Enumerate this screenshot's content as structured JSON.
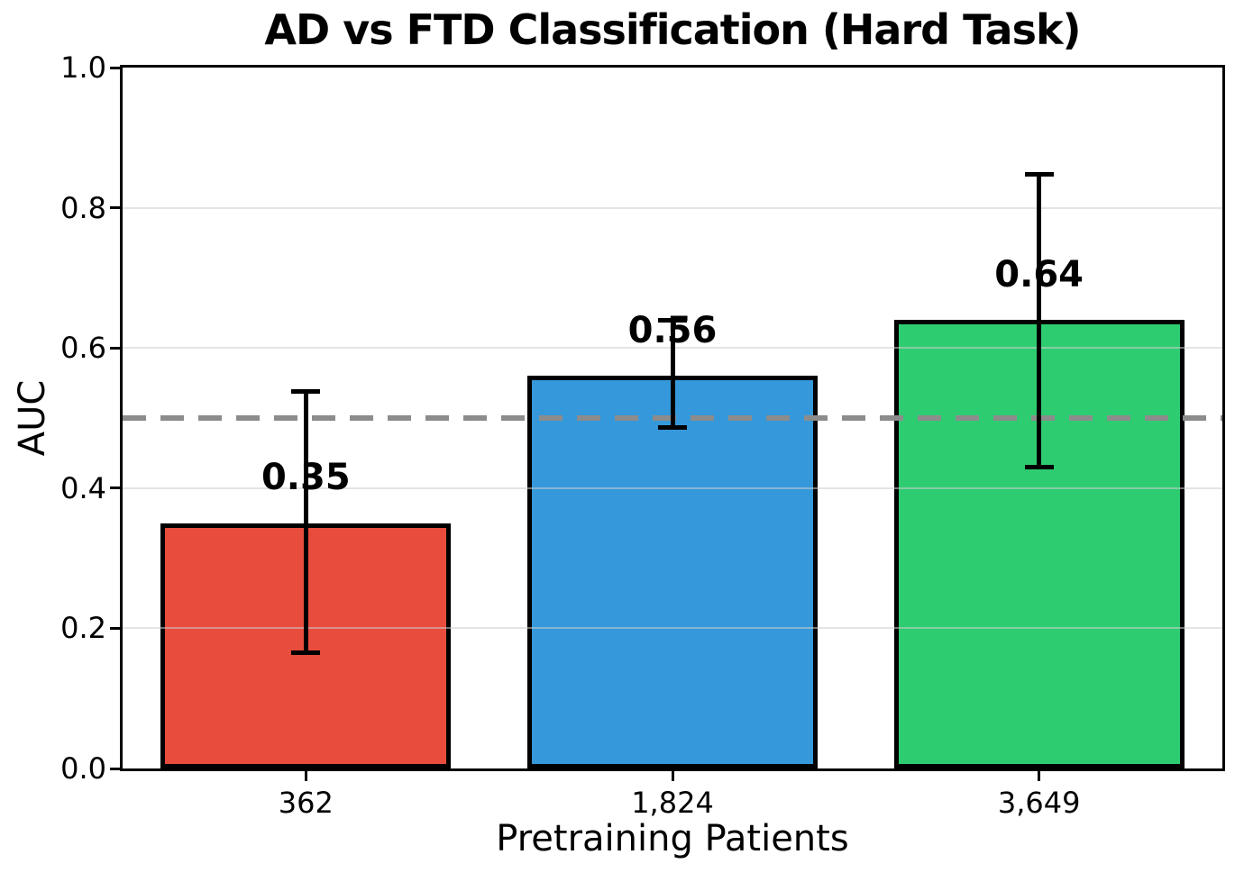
{
  "chart_data": {
    "type": "bar",
    "title": "AD vs FTD Classification (Hard Task)",
    "xlabel": "Pretraining Patients",
    "ylabel": "AUC",
    "ylim": [
      0.0,
      1.0
    ],
    "yticks": [
      0.0,
      0.2,
      0.4,
      0.6,
      0.8,
      1.0
    ],
    "ytick_labels": [
      "0.0",
      "0.2",
      "0.4",
      "0.6",
      "0.8",
      "1.0"
    ],
    "grid": true,
    "legend": "none",
    "categories": [
      "362",
      "1,824",
      "3,649"
    ],
    "values": [
      0.35,
      0.56,
      0.64
    ],
    "value_labels": [
      "0.35",
      "0.56",
      "0.64"
    ],
    "error_low": [
      0.165,
      0.486,
      0.43
    ],
    "error_high": [
      0.538,
      0.639,
      0.848
    ],
    "bar_colors": [
      "#e74c3c",
      "#3498db",
      "#2ecc71"
    ],
    "bar_border_color": "#000000",
    "reference_line": {
      "y": 0.5,
      "style": "dashed",
      "color": "#8c8c8c"
    },
    "gridline_color": "#cdcdcd",
    "background_color": "#ffffff"
  }
}
